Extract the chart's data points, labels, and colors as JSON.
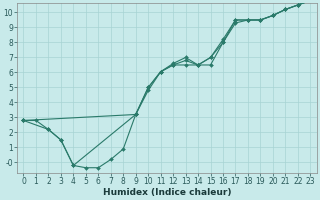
{
  "xlabel": "Humidex (Indice chaleur)",
  "bg_color": "#c8eaea",
  "grid_color": "#a8d4d4",
  "line_color": "#2a7a6a",
  "xlim_min": -0.5,
  "xlim_max": 23.5,
  "ylim_min": -0.7,
  "ylim_max": 10.6,
  "xticks": [
    0,
    1,
    2,
    3,
    4,
    5,
    6,
    7,
    8,
    9,
    10,
    11,
    12,
    13,
    14,
    15,
    16,
    17,
    18,
    19,
    20,
    21,
    22,
    23
  ],
  "yticks": [
    0,
    1,
    2,
    3,
    4,
    5,
    6,
    7,
    8,
    9,
    10
  ],
  "ytick_labels": [
    "-0",
    "1",
    "2",
    "3",
    "4",
    "5",
    "6",
    "7",
    "8",
    "9",
    "10"
  ],
  "line1_x": [
    0,
    1,
    2,
    3,
    4,
    5,
    6,
    7,
    8,
    9,
    10,
    11,
    12,
    13,
    14,
    15,
    16,
    17,
    18,
    19,
    20,
    21,
    22,
    23
  ],
  "line1_y": [
    2.8,
    2.8,
    2.2,
    1.5,
    -0.2,
    -0.35,
    -0.35,
    0.2,
    0.9,
    3.2,
    5.0,
    6.05,
    6.5,
    6.5,
    6.5,
    6.5,
    8.0,
    9.3,
    9.5,
    9.5,
    9.8,
    10.2,
    10.5,
    10.8
  ],
  "line2_x": [
    0,
    2,
    3,
    4,
    9,
    10,
    11,
    12,
    13,
    14,
    15,
    16,
    17,
    18,
    19,
    20,
    21,
    22,
    23
  ],
  "line2_y": [
    2.8,
    2.2,
    1.5,
    -0.2,
    3.2,
    4.8,
    6.05,
    6.5,
    6.8,
    6.5,
    7.0,
    8.0,
    9.5,
    9.5,
    9.5,
    9.8,
    10.2,
    10.5,
    10.8
  ],
  "line3_x": [
    0,
    9,
    10,
    11,
    12,
    13,
    14,
    15,
    16,
    17,
    18,
    19,
    20,
    21,
    22,
    23
  ],
  "line3_y": [
    2.8,
    3.2,
    5.0,
    6.05,
    6.6,
    7.0,
    6.5,
    7.0,
    8.2,
    9.5,
    9.5,
    9.5,
    9.8,
    10.2,
    10.5,
    10.8
  ],
  "tick_fontsize": 5.5,
  "xlabel_fontsize": 6.5,
  "linewidth": 0.8,
  "markersize": 2.0
}
